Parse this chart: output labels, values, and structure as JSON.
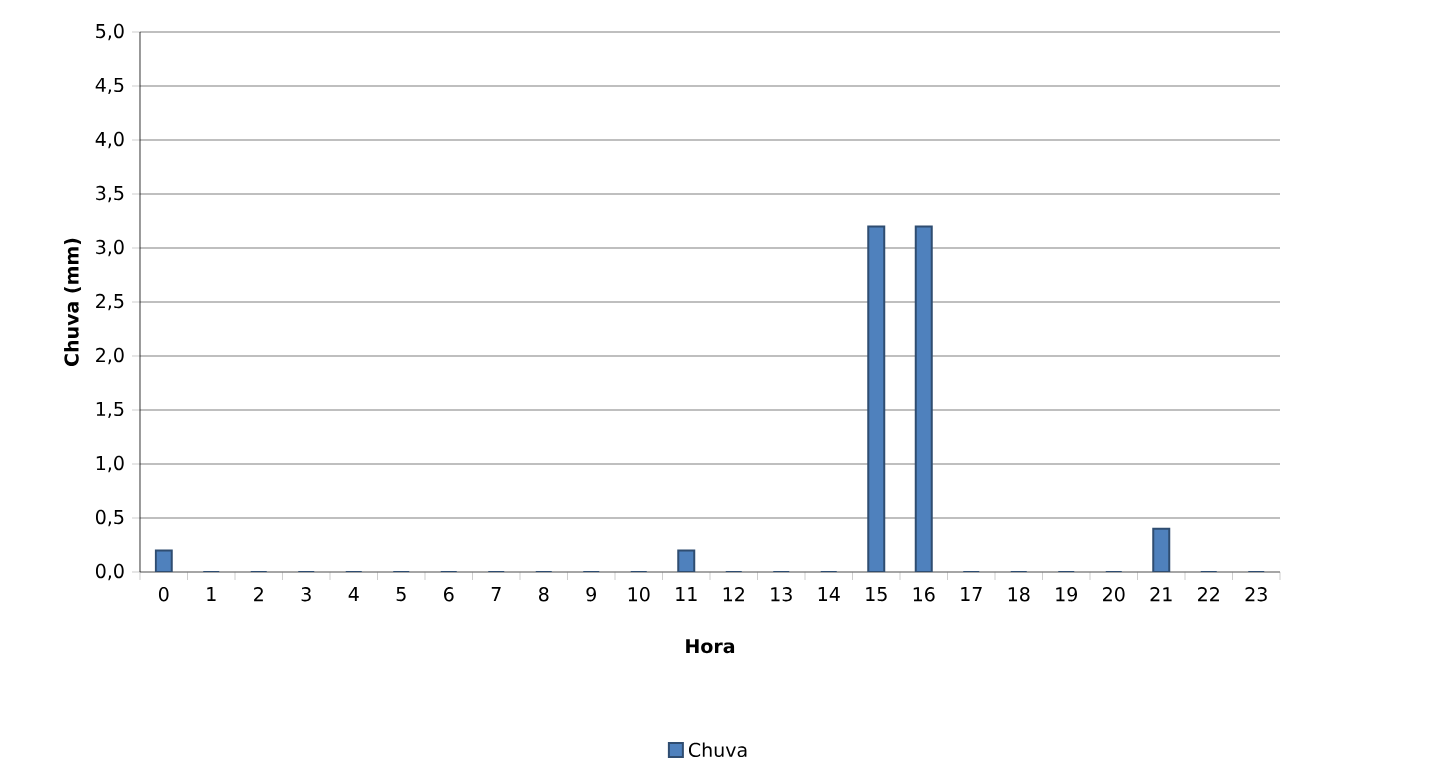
{
  "chart_data": {
    "type": "bar",
    "xlabel": "Hora",
    "ylabel": "Chuva (mm)",
    "categories": [
      "0",
      "1",
      "2",
      "3",
      "4",
      "5",
      "6",
      "7",
      "8",
      "9",
      "10",
      "11",
      "12",
      "13",
      "14",
      "15",
      "16",
      "17",
      "18",
      "19",
      "20",
      "21",
      "22",
      "23"
    ],
    "series": [
      {
        "name": "Chuva",
        "color": "#4f81bd",
        "values": [
          0.2,
          0,
          0,
          0,
          0,
          0,
          0,
          0,
          0,
          0,
          0,
          0.2,
          0,
          0,
          0,
          3.2,
          3.2,
          0,
          0,
          0,
          0,
          0.4,
          0,
          0
        ]
      }
    ],
    "ylim": [
      0,
      5
    ],
    "yticks": [
      {
        "value": 0,
        "label": "0,0"
      },
      {
        "value": 0.5,
        "label": "0,5"
      },
      {
        "value": 1,
        "label": "1,0"
      },
      {
        "value": 1.5,
        "label": "1,5"
      },
      {
        "value": 2,
        "label": "2,0"
      },
      {
        "value": 2.5,
        "label": "2,5"
      },
      {
        "value": 3,
        "label": "3,0"
      },
      {
        "value": 3.5,
        "label": "3,5"
      },
      {
        "value": 4,
        "label": "4,0"
      },
      {
        "value": 4.5,
        "label": "4,5"
      },
      {
        "value": 5,
        "label": "5,0"
      }
    ],
    "grid": "y",
    "legend": "bottom"
  }
}
